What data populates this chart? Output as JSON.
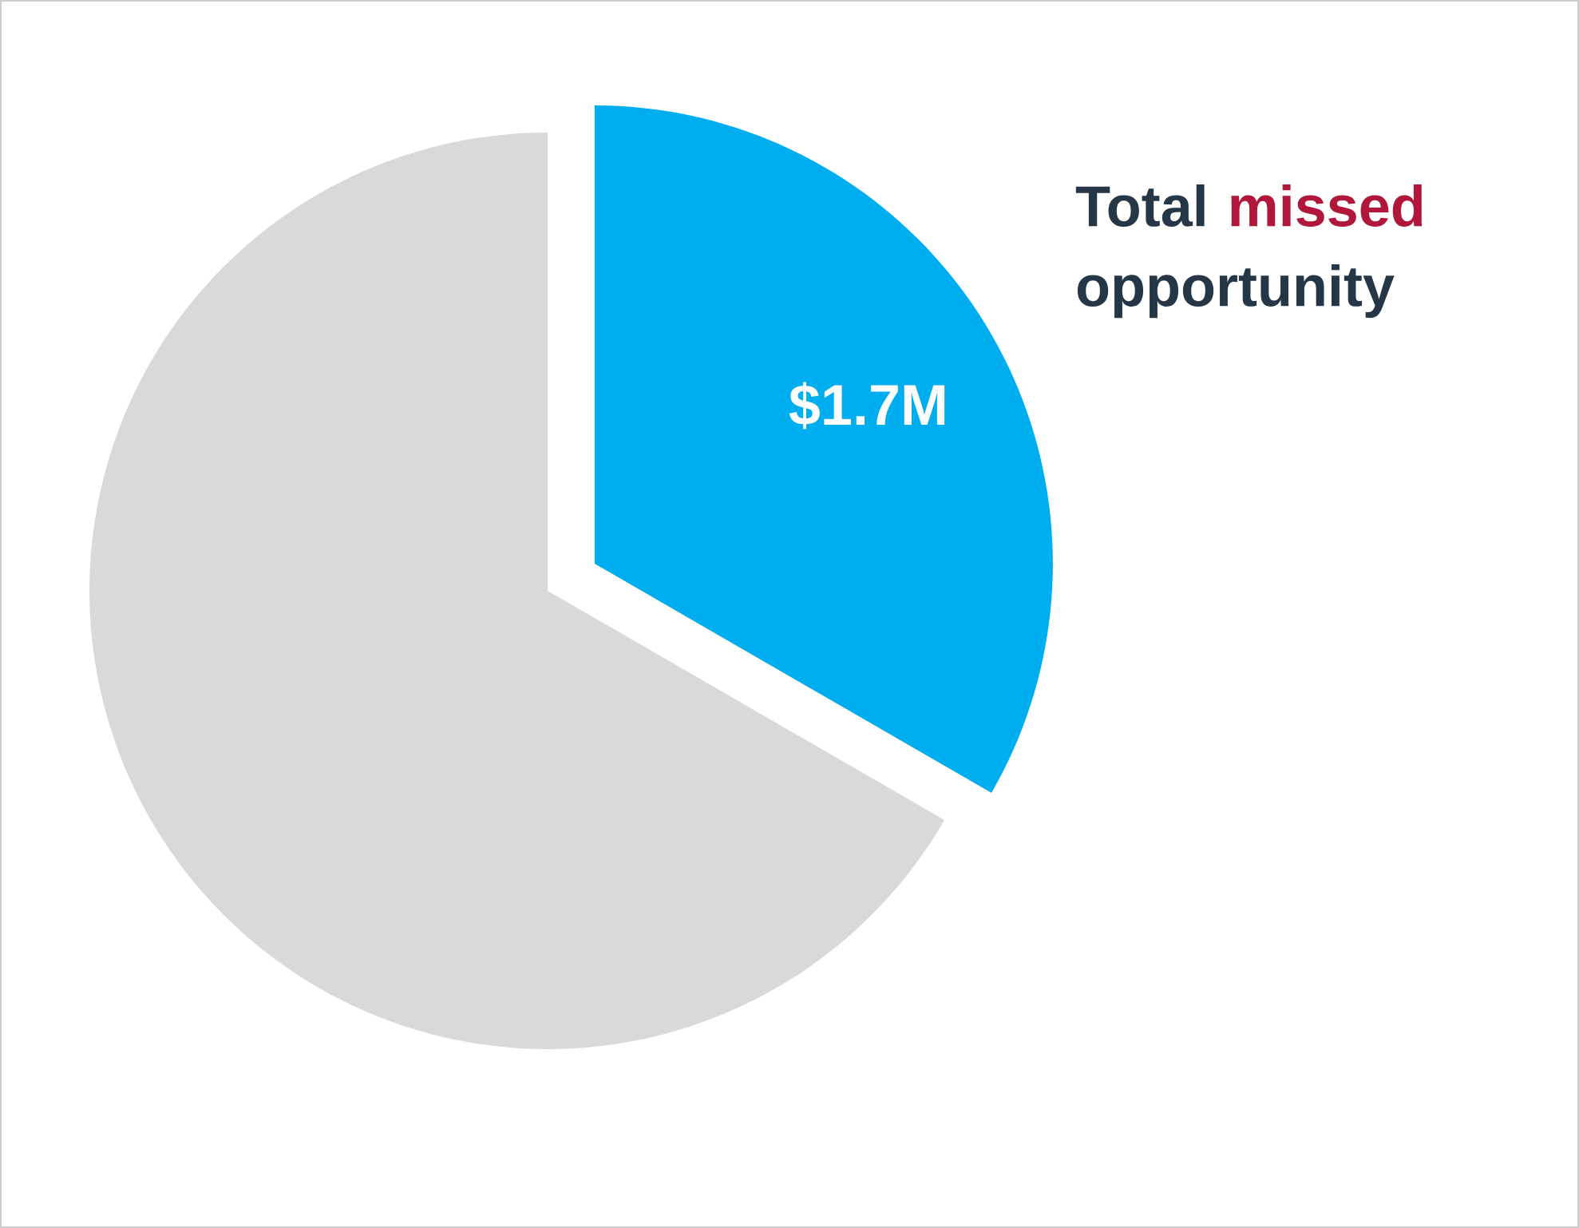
{
  "chart_data": {
    "type": "pie",
    "title": "Total **missed** opportunity",
    "categories": [
      null,
      null
    ],
    "values": [
      1.7,
      3.4
    ],
    "colors": [
      "#00adef",
      "#d9d9d9"
    ],
    "value_labels": [
      "$1.7M",
      null
    ]
  }
}
